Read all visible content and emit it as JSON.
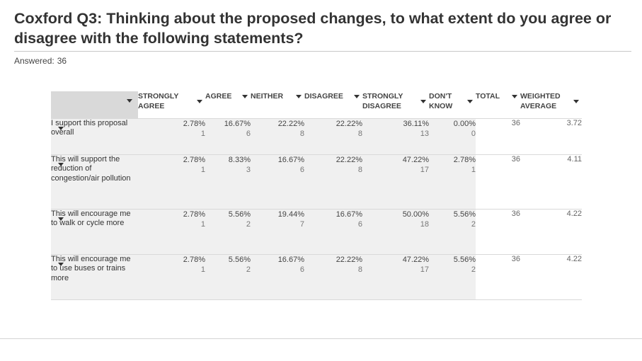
{
  "title": "Coxford Q3:  Thinking about the proposed changes, to what extent do you agree or disagree with the following statements?",
  "answered": {
    "label": "Answered:",
    "value": "36"
  },
  "columns": [
    {
      "label": "STRONGLY AGREE"
    },
    {
      "label": "AGREE"
    },
    {
      "label": "NEITHER"
    },
    {
      "label": "DISAGREE"
    },
    {
      "label": "STRONGLY DISAGREE"
    },
    {
      "label": "DON'T KNOW"
    },
    {
      "label": "TOTAL"
    },
    {
      "label": "WEIGHTED AVERAGE"
    }
  ],
  "rows": [
    {
      "label": "I support this proposal overall",
      "cells": [
        {
          "pct": "2.78%",
          "count": "1"
        },
        {
          "pct": "16.67%",
          "count": "6"
        },
        {
          "pct": "22.22%",
          "count": "8"
        },
        {
          "pct": "22.22%",
          "count": "8"
        },
        {
          "pct": "36.11%",
          "count": "13"
        },
        {
          "pct": "0.00%",
          "count": "0"
        }
      ],
      "total": "36",
      "weighted_average": "3.72"
    },
    {
      "label": "This will support the reduction of congestion/air pollution",
      "cells": [
        {
          "pct": "2.78%",
          "count": "1"
        },
        {
          "pct": "8.33%",
          "count": "3"
        },
        {
          "pct": "16.67%",
          "count": "6"
        },
        {
          "pct": "22.22%",
          "count": "8"
        },
        {
          "pct": "47.22%",
          "count": "17"
        },
        {
          "pct": "2.78%",
          "count": "1"
        }
      ],
      "total": "36",
      "weighted_average": "4.11"
    },
    {
      "label": "This will encourage me to walk or cycle more",
      "cells": [
        {
          "pct": "2.78%",
          "count": "1"
        },
        {
          "pct": "5.56%",
          "count": "2"
        },
        {
          "pct": "19.44%",
          "count": "7"
        },
        {
          "pct": "16.67%",
          "count": "6"
        },
        {
          "pct": "50.00%",
          "count": "18"
        },
        {
          "pct": "5.56%",
          "count": "2"
        }
      ],
      "total": "36",
      "weighted_average": "4.22"
    },
    {
      "label": "This will encourage me to use buses or trains more",
      "cells": [
        {
          "pct": "2.78%",
          "count": "1"
        },
        {
          "pct": "5.56%",
          "count": "2"
        },
        {
          "pct": "16.67%",
          "count": "6"
        },
        {
          "pct": "22.22%",
          "count": "8"
        },
        {
          "pct": "47.22%",
          "count": "17"
        },
        {
          "pct": "5.56%",
          "count": "2"
        }
      ],
      "total": "36",
      "weighted_average": "4.22"
    }
  ],
  "colors": {
    "cell_bg": "#f0f0f0",
    "corner_bg": "#d9d9d9",
    "rule": "#d9d9d9",
    "text": "#333e48"
  },
  "icons": {
    "sort": "caret-down-icon",
    "row_toggle": "caret-down-icon"
  }
}
